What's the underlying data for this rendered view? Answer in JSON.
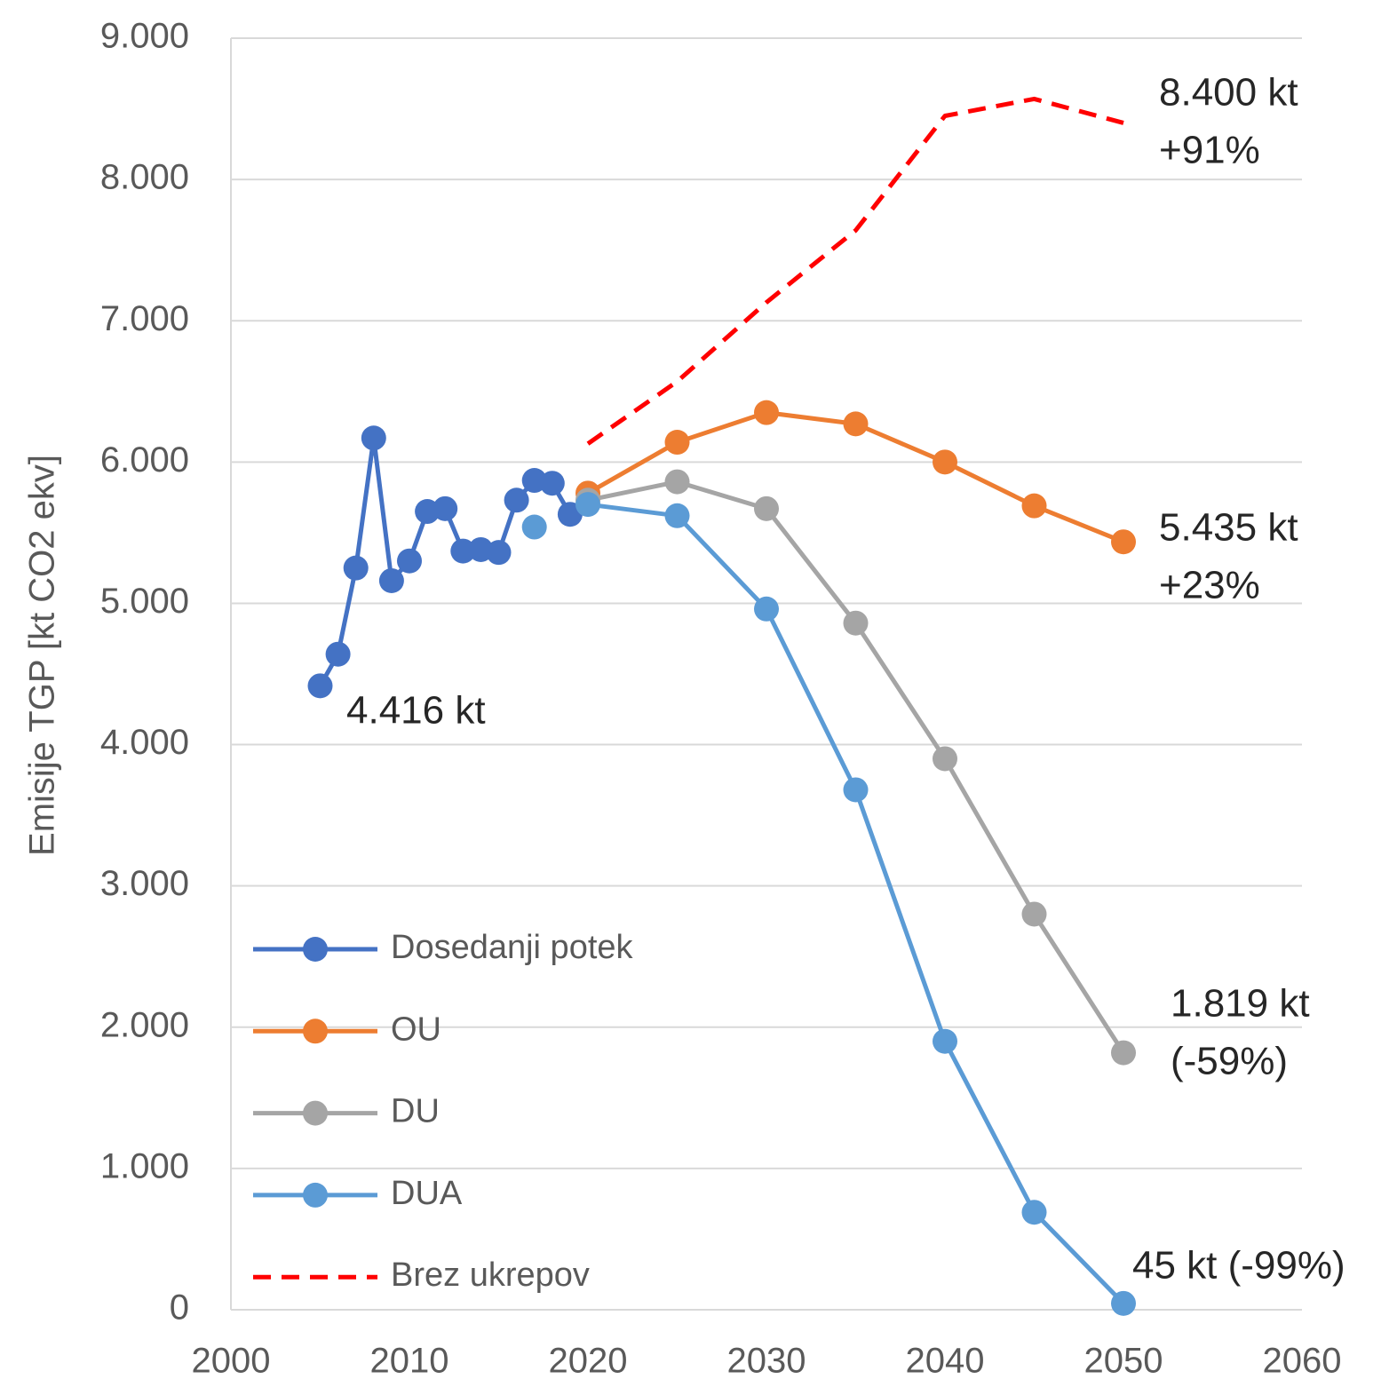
{
  "chart_data": {
    "type": "line",
    "y_label": "Emisije TGP [kt CO2 ekv]",
    "xlim": [
      2000,
      2060
    ],
    "xticks": [
      2000,
      2010,
      2020,
      2030,
      2040,
      2050,
      2060
    ],
    "ylim": [
      0,
      9000
    ],
    "yticks": [
      0,
      {
        "value": 1000,
        "label": "1.000"
      },
      {
        "value": 2000,
        "label": "2.000"
      },
      {
        "value": 3000,
        "label": "3.000"
      },
      {
        "value": 4000,
        "label": "4.000"
      },
      {
        "value": 5000,
        "label": "5.000"
      },
      {
        "value": 6000,
        "label": "6.000"
      },
      {
        "value": 7000,
        "label": "7.000"
      },
      {
        "value": 8000,
        "label": "8.000"
      },
      {
        "value": 9000,
        "label": "9.000"
      }
    ],
    "grid": true,
    "legend": "lower left",
    "series": [
      {
        "name": "Dosedanji potek",
        "color": "#4472c4",
        "marker": true,
        "line_style": "solid",
        "x": [
          2005,
          2006,
          2007,
          2008,
          2009,
          2010,
          2011,
          2012,
          2013,
          2014,
          2015,
          2016,
          2017,
          2018,
          2019
        ],
        "values": [
          4416,
          4640,
          5250,
          6170,
          5160,
          5300,
          5650,
          5670,
          5370,
          5380,
          5360,
          5730,
          5870,
          5850,
          5630
        ]
      },
      {
        "name": "OU",
        "color": "#ed7d31",
        "marker": true,
        "line_style": "solid",
        "x": [
          2020,
          2025,
          2030,
          2035,
          2040,
          2045,
          2050
        ],
        "values": [
          5780,
          6140,
          6350,
          6270,
          6000,
          5690,
          5435
        ]
      },
      {
        "name": "DU",
        "color": "#a5a5a5",
        "marker": true,
        "line_style": "solid",
        "x": [
          2020,
          2025,
          2030,
          2035,
          2040,
          2045,
          2050
        ],
        "values": [
          5730,
          5860,
          5670,
          4860,
          3900,
          2800,
          1819
        ]
      },
      {
        "name": "DUA",
        "color": "#5b9bd5",
        "marker": true,
        "line_style": "solid",
        "x": [
          2020,
          2025,
          2030,
          2035,
          2040,
          2045,
          2050
        ],
        "values": [
          5700,
          5620,
          4960,
          3680,
          1900,
          690,
          45
        ]
      },
      {
        "name": "Brez ukrepov",
        "color": "#ff0000",
        "marker": false,
        "line_style": "dashed",
        "x": [
          2020,
          2025,
          2030,
          2035,
          2040,
          2045,
          2050
        ],
        "values": [
          6130,
          6570,
          7130,
          7640,
          8450,
          8570,
          8400
        ]
      },
      {
        "color": "#5b9bd5",
        "marker": true,
        "line_style": "solid",
        "x": [
          2017
        ],
        "values": [
          5540
        ]
      }
    ],
    "annotations": [
      [
        "4.416 kt"
      ],
      [
        "8.400 kt",
        "+91%"
      ],
      [
        "5.435 kt",
        "+23%"
      ],
      [
        "1.819 kt",
        "(-59%)"
      ],
      [
        "45 kt (-99%)"
      ]
    ]
  }
}
